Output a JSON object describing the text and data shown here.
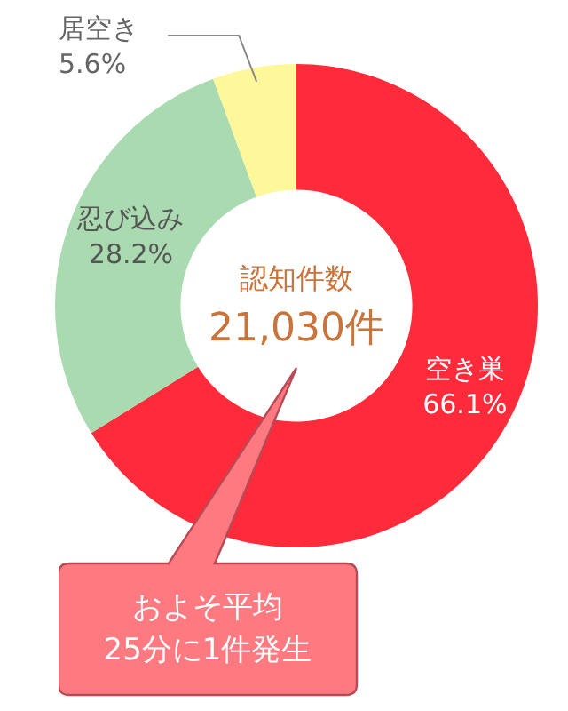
{
  "chart_data": {
    "type": "donut",
    "categories": [
      "空き巣",
      "忍び込み",
      "居空き"
    ],
    "values": [
      66.1,
      28.2,
      5.6
    ],
    "colors": [
      "#ff2a3a",
      "#aadbb0",
      "#fff89a"
    ],
    "value_labels": [
      "66.1%",
      "28.2%",
      "5.6%"
    ],
    "legend": false,
    "annotations": [
      "認知件数",
      "21,030件",
      "およそ平均\n25分に1件発生"
    ]
  }
}
